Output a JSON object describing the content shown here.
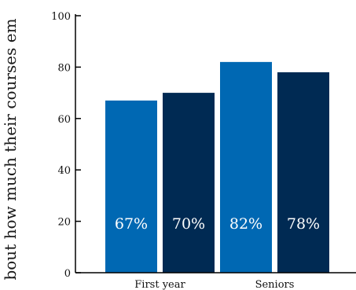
{
  "chart_data": {
    "type": "bar",
    "title": "",
    "xlabel": "",
    "ylabel": "bout how much their courses em",
    "ylim": [
      0,
      100
    ],
    "yticks": [
      0,
      20,
      40,
      60,
      80,
      100
    ],
    "categories": [
      "First year",
      "Seniors"
    ],
    "series": [
      {
        "color": "#0068b3",
        "values": [
          67,
          82
        ],
        "labels": [
          "67%",
          "82%"
        ]
      },
      {
        "color": "#002a53",
        "values": [
          70,
          78
        ],
        "labels": [
          "70%",
          "78%"
        ]
      }
    ],
    "grid": false,
    "legend": "none"
  }
}
